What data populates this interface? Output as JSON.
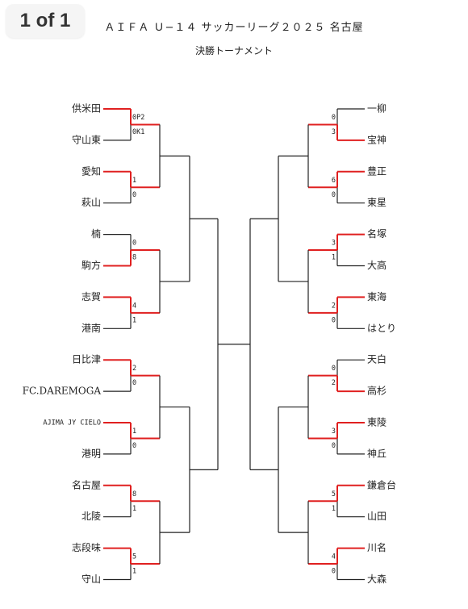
{
  "viewer": {
    "page_indicator": "1 of 1"
  },
  "document": {
    "title": "ＡＩＦＡ Ｕ−１４ サッカーリーグ２０２５ 名古屋",
    "subtitle": "決勝トーナメント"
  },
  "bracket": {
    "left": {
      "teams": [
        "供米田",
        "守山東",
        "愛知",
        "萩山",
        "楠",
        "駒方",
        "志賀",
        "港南",
        "日比津",
        "FC.DAREMOGA",
        "AJIMA JY CIELO",
        "港明",
        "名古屋",
        "北陵",
        "志段味",
        "守山"
      ],
      "r1_scores": [
        [
          "0P2",
          "0K1"
        ],
        [
          "1",
          "0"
        ],
        [
          "0",
          "8"
        ],
        [
          "4",
          "1"
        ],
        [
          "2",
          "0"
        ],
        [
          "1",
          "0"
        ],
        [
          "8",
          "1"
        ],
        [
          "5",
          "1"
        ]
      ],
      "r1_winner": [
        "top",
        "top",
        "bottom",
        "top",
        "top",
        "top",
        "top",
        "top"
      ]
    },
    "right": {
      "teams": [
        "一柳",
        "宝神",
        "豊正",
        "東星",
        "名塚",
        "大高",
        "東海",
        "はとり",
        "天白",
        "高杉",
        "東陵",
        "神丘",
        "鎌倉台",
        "山田",
        "川名",
        "大森"
      ],
      "r1_scores": [
        [
          "0",
          "3"
        ],
        [
          "6",
          "0"
        ],
        [
          "3",
          "1"
        ],
        [
          "2",
          "0"
        ],
        [
          "0",
          "2"
        ],
        [
          "3",
          "0"
        ],
        [
          "5",
          "1"
        ],
        [
          "4",
          "0"
        ]
      ],
      "r1_winner": [
        "bottom",
        "top",
        "top",
        "top",
        "bottom",
        "top",
        "top",
        "top"
      ]
    },
    "colors": {
      "winner_line": "#e02020",
      "line": "#222222"
    }
  }
}
